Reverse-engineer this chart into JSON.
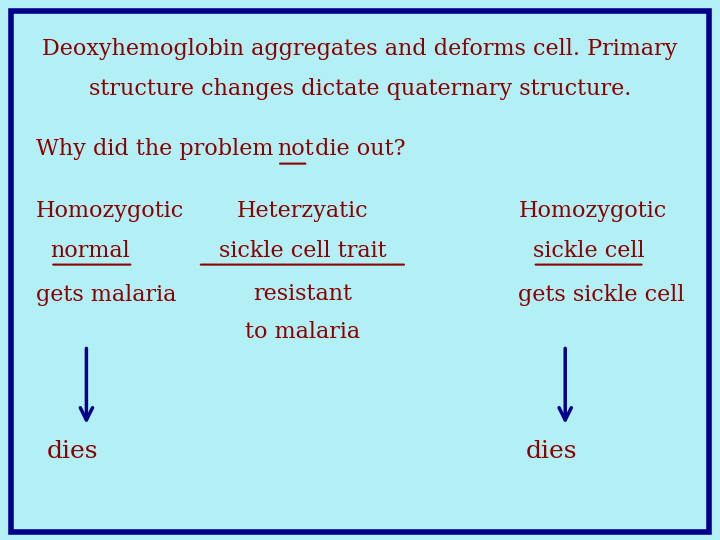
{
  "background_color": "#b3f0f5",
  "border_color": "#00008B",
  "text_color": "#8B0000",
  "title_line1": "Deoxyhemoglobin aggregates and deforms cell. Primary",
  "title_line2": "structure changes dictate quaternary structure.",
  "question_pre": "Why did the problem ",
  "question_underline": "not",
  "question_end": " die out?",
  "col1_line1": "Homozygotic",
  "col1_line2_underline": "normal",
  "col1_line3": "gets malaria",
  "col1_bottom": "dies",
  "col2_line1": "Heterzyatic",
  "col2_line2_underline": "sickle cell trait",
  "col2_line3": "resistant",
  "col2_line4": "to malaria",
  "col3_line1": "Homozygotic",
  "col3_line2_underline": "sickle cell",
  "col3_line3": "gets sickle cell",
  "col3_bottom": "dies",
  "fontsize_title": 16,
  "fontsize_question": 16,
  "fontsize_body": 16,
  "fontsize_dies": 18,
  "arrow_color": "#00008B"
}
